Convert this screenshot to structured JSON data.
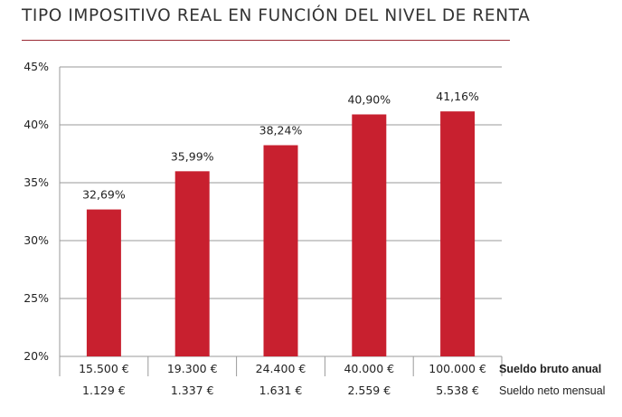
{
  "title": "TIPO IMPOSITIVO REAL EN FUNCIÓN DEL NIVEL DE RENTA",
  "colors": {
    "bar": "#c8202f",
    "rule": "#9b2a35",
    "grid": "#9a9a9a"
  },
  "chart_data": {
    "type": "bar",
    "categories": [
      "15.500 €",
      "19.300 €",
      "24.400 €",
      "40.000 €",
      "100.000 €"
    ],
    "values": [
      32.69,
      35.99,
      38.24,
      40.9,
      41.16
    ],
    "data_labels": [
      "32,69%",
      "35,99%",
      "38,24%",
      "40,90%",
      "41,16%"
    ],
    "secondary_row": [
      "1.129 €",
      "1.337 €",
      "1.631 €",
      "2.559 €",
      "5.538 €"
    ],
    "category_row_label": "Sueldo bruto anual",
    "secondary_row_label": "Sueldo neto mensual",
    "ylim": [
      20,
      45
    ],
    "yticks": [
      20,
      25,
      30,
      35,
      40,
      45
    ],
    "ytick_labels": [
      "20%",
      "25%",
      "30%",
      "35%",
      "40%",
      "45%"
    ],
    "grid": true
  }
}
